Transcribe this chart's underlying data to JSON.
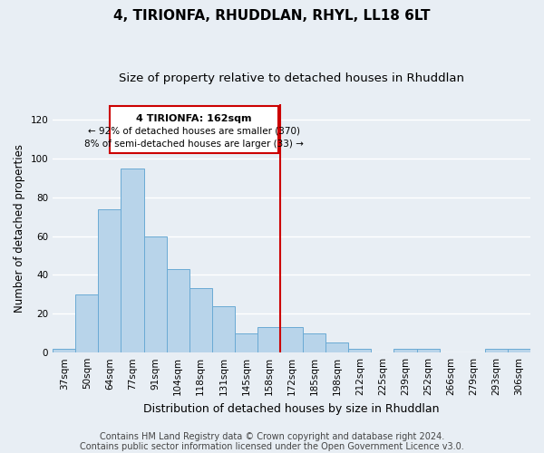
{
  "title": "4, TIRIONFA, RHUDDLAN, RHYL, LL18 6LT",
  "subtitle": "Size of property relative to detached houses in Rhuddlan",
  "xlabel": "Distribution of detached houses by size in Rhuddlan",
  "ylabel": "Number of detached properties",
  "bar_labels": [
    "37sqm",
    "50sqm",
    "64sqm",
    "77sqm",
    "91sqm",
    "104sqm",
    "118sqm",
    "131sqm",
    "145sqm",
    "158sqm",
    "172sqm",
    "185sqm",
    "198sqm",
    "212sqm",
    "225sqm",
    "239sqm",
    "252sqm",
    "266sqm",
    "279sqm",
    "293sqm",
    "306sqm"
  ],
  "bar_values": [
    2,
    30,
    74,
    95,
    60,
    43,
    33,
    24,
    10,
    13,
    13,
    10,
    5,
    2,
    0,
    2,
    2,
    0,
    0,
    2,
    2
  ],
  "bar_color": "#b8d4ea",
  "bar_edge_color": "#6aaad4",
  "vline_x_index": 9.5,
  "vline_color": "#cc0000",
  "ylim": [
    0,
    128
  ],
  "yticks": [
    0,
    20,
    40,
    60,
    80,
    100,
    120
  ],
  "annotation_title": "4 TIRIONFA: 162sqm",
  "annotation_line1": "← 92% of detached houses are smaller (370)",
  "annotation_line2": "8% of semi-detached houses are larger (33) →",
  "annotation_box_facecolor": "#ffffff",
  "annotation_box_edgecolor": "#cc0000",
  "footer1": "Contains HM Land Registry data © Crown copyright and database right 2024.",
  "footer2": "Contains public sector information licensed under the Open Government Licence v3.0.",
  "background_color": "#e8eef4",
  "grid_color": "#ffffff",
  "title_fontsize": 11,
  "subtitle_fontsize": 9.5,
  "ylabel_fontsize": 8.5,
  "xlabel_fontsize": 9,
  "tick_fontsize": 7.5,
  "annotation_title_fontsize": 8,
  "annotation_line_fontsize": 7.5,
  "footer_fontsize": 7
}
